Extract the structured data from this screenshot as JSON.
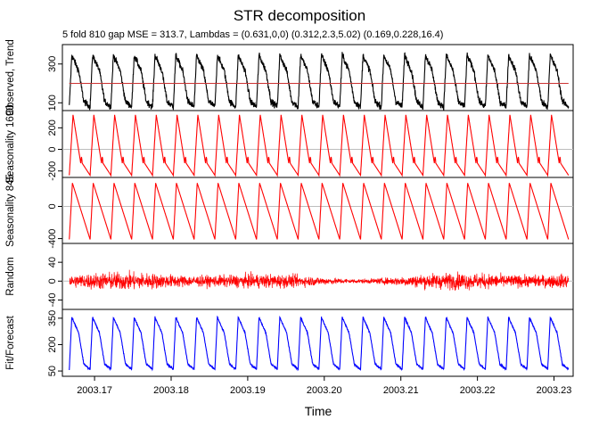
{
  "chart_data": {
    "type": "line",
    "title": "STR decomposition",
    "subtitle": "5 fold 810 gap MSE = 313.7, Lambdas = (0.631,0,0) (0.312,2.3,5.02) (0.169,0.228,16.4)",
    "xlabel": "Time",
    "xlim": [
      2003.1658,
      2003.2325
    ],
    "x_ticks": [
      2003.17,
      2003.18,
      2003.19,
      2003.2,
      2003.21,
      2003.22,
      2003.23
    ],
    "x_tick_labels": [
      "2003.17",
      "2003.18",
      "2003.19",
      "2003.20",
      "2003.21",
      "2003.22",
      "2003.23"
    ],
    "cycles": 24,
    "panels": [
      {
        "ylabel": "Observed, Trend",
        "ylim": [
          60,
          400
        ],
        "ticks": [
          100,
          300
        ],
        "series": [
          {
            "color": "#000000",
            "role": "observed",
            "cycle_min": 80,
            "cycle_max": 345
          },
          {
            "color": "#cc3333",
            "role": "trend",
            "level": 200
          }
        ]
      },
      {
        "ylabel": "Seasonality 1690",
        "ylim": [
          -260,
          360
        ],
        "ticks": [
          -200,
          0,
          200
        ],
        "zero_line": true,
        "series": [
          {
            "color": "#ff0000",
            "cycle_min": -240,
            "cycle_max": 320
          }
        ]
      },
      {
        "ylabel": "Seasonality 845",
        "ylim": [
          -460,
          360
        ],
        "ticks": [
          -400,
          0
        ],
        "zero_line": true,
        "series": [
          {
            "color": "#ff0000",
            "cycle_min": -410,
            "cycle_max": 290
          }
        ]
      },
      {
        "ylabel": "Random",
        "ylim": [
          -60,
          80
        ],
        "ticks": [
          -40,
          0,
          40
        ],
        "zero_line": true,
        "series": [
          {
            "color": "#ff0000",
            "noise_range": [
              -50,
              50
            ]
          }
        ]
      },
      {
        "ylabel": "Fit/Forecast",
        "ylim": [
          20,
          400
        ],
        "ticks": [
          50,
          200,
          350
        ],
        "series": [
          {
            "color": "#0000ff",
            "cycle_min": 60,
            "cycle_max": 355
          }
        ]
      }
    ]
  }
}
